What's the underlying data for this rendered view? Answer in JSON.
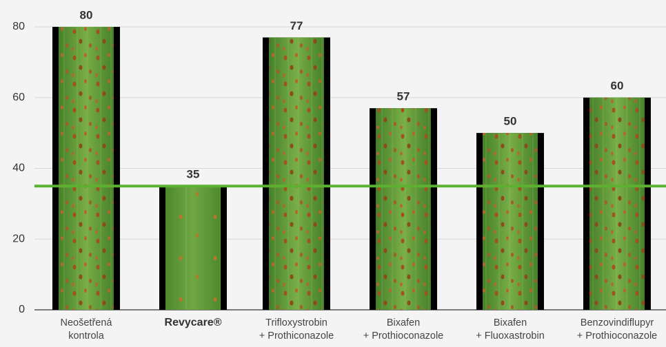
{
  "chart_data": {
    "type": "bar",
    "categories": [
      [
        "Neošetřená",
        "kontrola"
      ],
      [
        "Revycare®"
      ],
      [
        "Trifloxystrobin",
        "+ Prothiconazole"
      ],
      [
        "Bixafen",
        "+  Prothioconazole"
      ],
      [
        "Bixafen",
        "+ Fluoxastrobin"
      ],
      [
        "Benzovindiflupyr",
        "+ Prothioconazole"
      ]
    ],
    "values": [
      80,
      35,
      77,
      57,
      50,
      60
    ],
    "highlight_index": 1,
    "color": "#5f9a3a",
    "reference_line": {
      "value": 35,
      "color": "#5db130"
    },
    "ylim": [
      0,
      80
    ],
    "yticks": [
      0,
      20,
      40,
      60,
      80
    ],
    "grid": true
  }
}
